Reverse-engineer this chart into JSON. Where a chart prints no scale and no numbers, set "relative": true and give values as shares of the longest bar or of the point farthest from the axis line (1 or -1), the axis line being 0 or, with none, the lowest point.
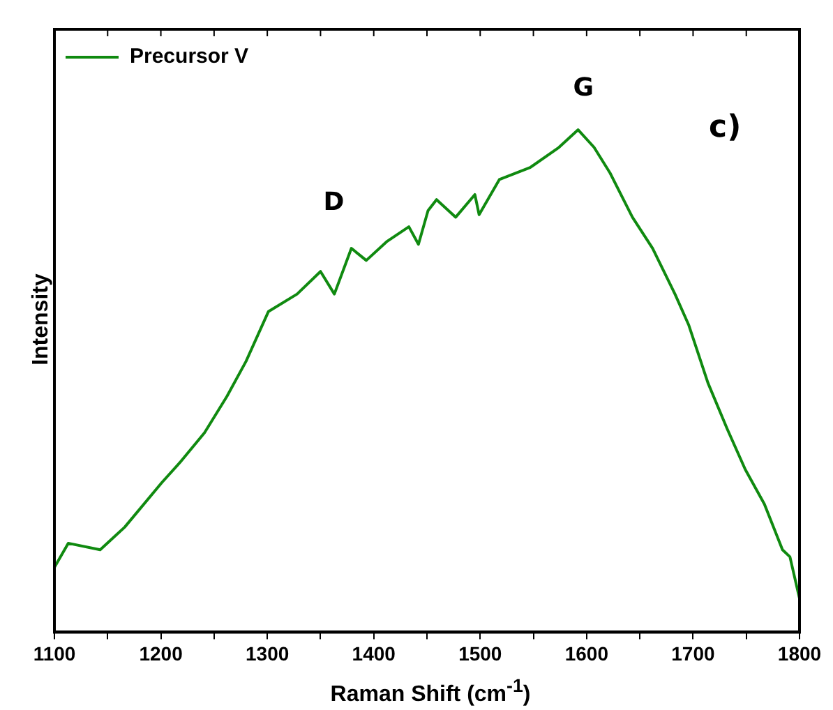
{
  "chart_data": {
    "type": "line",
    "xlabel": "Raman Shift (cm$^{-1}$)",
    "ylabel": "Intensity",
    "relative": true,
    "legend": "top left",
    "marker": "none",
    "line_style": "solid",
    "xlim": [
      1100,
      1800
    ],
    "xticks": [
      1100,
      {
        "value": 1150,
        "label": null
      },
      1200,
      {
        "value": 1250,
        "label": null
      },
      1300,
      {
        "value": 1350,
        "label": null
      },
      1400,
      {
        "value": 1450,
        "label": null
      },
      1500,
      {
        "value": 1550,
        "label": null
      },
      1600,
      {
        "value": 1650,
        "label": null
      },
      1700,
      {
        "value": 1750,
        "label": null
      },
      1800
    ],
    "annotations": [
      "D",
      "G",
      "c)"
    ],
    "series": [
      {
        "name": "Precursor V",
        "color": "#108a10",
        "x": [
          1100,
          1113,
          1143,
          1166,
          1201,
          1218,
          1241,
          1262,
          1280,
          1301,
          1328,
          1350,
          1363,
          1379,
          1393,
          1412,
          1433,
          1442,
          1451,
          1459,
          1477,
          1495,
          1499,
          1518,
          1547,
          1574,
          1592,
          1607,
          1622,
          1643,
          1662,
          1683,
          1696,
          1714,
          1732,
          1749,
          1767,
          1784,
          1791,
          1800
        ],
        "values": [
          0.129,
          0.177,
          0.164,
          0.209,
          0.298,
          0.338,
          0.397,
          0.469,
          0.539,
          0.638,
          0.673,
          0.718,
          0.673,
          0.764,
          0.74,
          0.777,
          0.807,
          0.772,
          0.839,
          0.861,
          0.826,
          0.871,
          0.831,
          0.901,
          0.925,
          0.965,
          1.0,
          0.965,
          0.914,
          0.826,
          0.764,
          0.673,
          0.611,
          0.496,
          0.405,
          0.324,
          0.255,
          0.164,
          0.15,
          0.067
        ]
      }
    ]
  }
}
